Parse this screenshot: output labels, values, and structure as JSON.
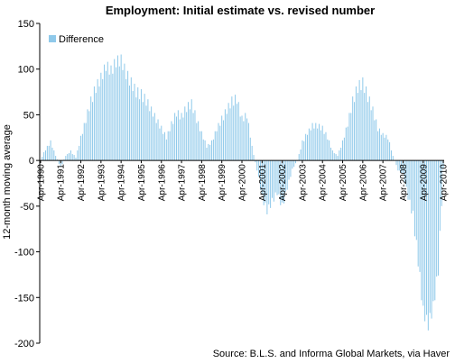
{
  "chart_data": {
    "type": "bar",
    "title": "Employment: Initial estimate vs. revised number",
    "ylabel": "12-month moving average",
    "xlabel": "",
    "ylim": [
      -200,
      150
    ],
    "yticks": [
      -200,
      -150,
      -100,
      -50,
      0,
      50,
      100,
      150
    ],
    "grid": false,
    "legend_position": "top-left",
    "series": [
      {
        "name": "Difference",
        "color": "#8fc9ea"
      }
    ],
    "x_start": "Apr-1990",
    "x_tick_labels": [
      "Apr-1990",
      "Apr-1991",
      "Apr-1992",
      "Apr-1993",
      "Apr-1994",
      "Apr-1995",
      "Apr-1996",
      "Apr-1997",
      "Apr-1998",
      "Apr-1999",
      "Apr-2000",
      "Apr-2001",
      "Apr-2002",
      "Apr-2003",
      "Apr-2004",
      "Apr-2005",
      "Apr-2006",
      "Apr-2007",
      "Apr-2008",
      "Apr-2009",
      "Apr-2010"
    ],
    "keypoints": [
      [
        "Apr-1990",
        0
      ],
      [
        "Jul-1990",
        12
      ],
      [
        "Oct-1990",
        20
      ],
      [
        "Jan-1991",
        5
      ],
      [
        "Apr-1991",
        -8
      ],
      [
        "Jul-1991",
        5
      ],
      [
        "Oct-1991",
        10
      ],
      [
        "Jan-1992",
        3
      ],
      [
        "Apr-1992",
        25
      ],
      [
        "Jul-1992",
        45
      ],
      [
        "Oct-1992",
        65
      ],
      [
        "Jan-1993",
        80
      ],
      [
        "Apr-1993",
        90
      ],
      [
        "Jul-1993",
        104
      ],
      [
        "Oct-1993",
        98
      ],
      [
        "Jan-1994",
        108
      ],
      [
        "Apr-1994",
        110
      ],
      [
        "Jul-1994",
        95
      ],
      [
        "Oct-1994",
        85
      ],
      [
        "Jan-1995",
        75
      ],
      [
        "Apr-1995",
        72
      ],
      [
        "Jul-1995",
        65
      ],
      [
        "Oct-1995",
        55
      ],
      [
        "Jan-1996",
        45
      ],
      [
        "Apr-1996",
        35
      ],
      [
        "Jul-1996",
        25
      ],
      [
        "Oct-1996",
        40
      ],
      [
        "Jan-1997",
        52
      ],
      [
        "Apr-1997",
        48
      ],
      [
        "Jul-1997",
        58
      ],
      [
        "Oct-1997",
        62
      ],
      [
        "Jan-1998",
        45
      ],
      [
        "Apr-1998",
        30
      ],
      [
        "Jul-1998",
        15
      ],
      [
        "Oct-1998",
        20
      ],
      [
        "Jan-1999",
        35
      ],
      [
        "Apr-1999",
        45
      ],
      [
        "Jul-1999",
        55
      ],
      [
        "Oct-1999",
        65
      ],
      [
        "Jan-2000",
        67
      ],
      [
        "Apr-2000",
        45
      ],
      [
        "Jul-2000",
        50
      ],
      [
        "Oct-2000",
        15
      ],
      [
        "Jan-2001",
        -10
      ],
      [
        "Apr-2001",
        -40
      ],
      [
        "Jul-2001",
        -55
      ],
      [
        "Oct-2001",
        -45
      ],
      [
        "Jan-2002",
        -35
      ],
      [
        "Apr-2002",
        -50
      ],
      [
        "Jul-2002",
        -30
      ],
      [
        "Oct-2002",
        -10
      ],
      [
        "Jan-2003",
        0
      ],
      [
        "Apr-2003",
        20
      ],
      [
        "Jul-2003",
        30
      ],
      [
        "Oct-2003",
        38
      ],
      [
        "Jan-2004",
        38
      ],
      [
        "Apr-2004",
        35
      ],
      [
        "Jul-2004",
        25
      ],
      [
        "Oct-2004",
        10
      ],
      [
        "Jan-2005",
        5
      ],
      [
        "Apr-2005",
        20
      ],
      [
        "Jul-2005",
        40
      ],
      [
        "Oct-2005",
        65
      ],
      [
        "Jan-2006",
        80
      ],
      [
        "Apr-2006",
        85
      ],
      [
        "Jul-2006",
        70
      ],
      [
        "Oct-2006",
        55
      ],
      [
        "Jan-2007",
        35
      ],
      [
        "Apr-2007",
        28
      ],
      [
        "Jul-2007",
        25
      ],
      [
        "Oct-2007",
        5
      ],
      [
        "Jan-2008",
        -10
      ],
      [
        "Apr-2008",
        -15
      ],
      [
        "Jul-2008",
        -40
      ],
      [
        "Oct-2008",
        -60
      ],
      [
        "Jan-2009",
        -110
      ],
      [
        "Apr-2009",
        -165
      ],
      [
        "Jul-2009",
        -180
      ],
      [
        "Oct-2009",
        -160
      ],
      [
        "Jan-2010",
        -120
      ],
      [
        "Apr-2010",
        -10
      ]
    ]
  },
  "legend_label": "Difference",
  "source": "Source: B.L.S. and Informa Global Markets, via Haver"
}
